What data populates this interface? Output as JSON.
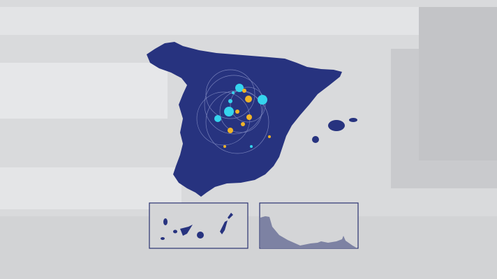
{
  "scene": {
    "type": "map-graphic",
    "region": "Spain",
    "insets": [
      "canary-islands",
      "coastline-detail"
    ]
  },
  "colors": {
    "background": "#d9dadc",
    "land": "#27337f",
    "highlight_cyan": "#35d4ee",
    "highlight_orange": "#f0b428",
    "inset_border": "#2a3270",
    "inset_land_profile": "#7d82a3"
  }
}
